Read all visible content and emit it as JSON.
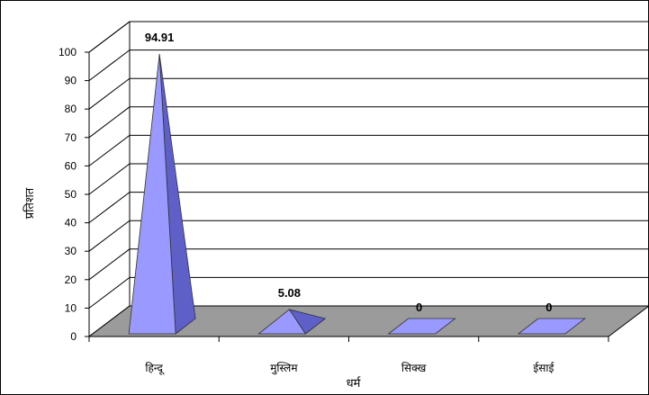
{
  "chart_data": {
    "type": "bar",
    "style": "3d-pyramid",
    "categories": [
      "हिन्दू",
      "मुस्लिम",
      "सिक्ख",
      "ईसाई"
    ],
    "values": [
      94.91,
      5.08,
      0,
      0
    ],
    "data_labels": [
      "94.91",
      "5.08",
      "0",
      "0"
    ],
    "xlabel": "धर्म",
    "ylabel": "प्रतिशत",
    "ylim": [
      0,
      100
    ],
    "yticks": [
      "0",
      "10",
      "20",
      "30",
      "40",
      "50",
      "60",
      "70",
      "80",
      "90",
      "100"
    ],
    "grid": true,
    "legend": "none",
    "colors": {
      "pyramid_front": "#9999ff",
      "pyramid_side": "#5f5fc8",
      "floor": "#9b9b9b",
      "gridline": "#000000"
    }
  }
}
